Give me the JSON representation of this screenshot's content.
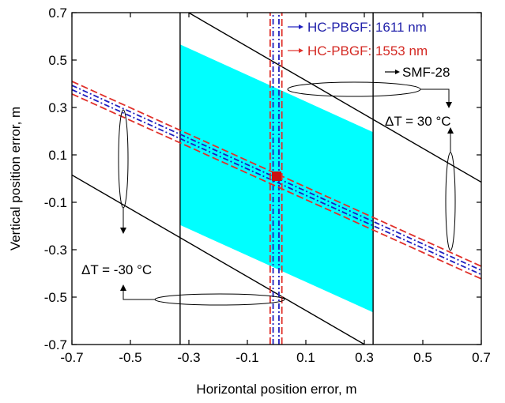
{
  "chart_data": {
    "type": "line",
    "xlabel": "Horizontal position error, m",
    "ylabel": "Vertical position error, m",
    "xlim": [
      -0.7,
      0.7
    ],
    "ylim": [
      -0.7,
      0.7
    ],
    "xticks": [
      "-0.7",
      "-0.5",
      "-0.3",
      "-0.1",
      "0.1",
      "0.3",
      "0.5",
      "0.7"
    ],
    "yticks": [
      "0.7",
      "0.5",
      "0.3",
      "0.1",
      "-0.1",
      "-0.3",
      "-0.5",
      "-0.7"
    ],
    "xtick_values": [
      -0.7,
      -0.5,
      -0.3,
      -0.1,
      0.1,
      0.3,
      0.5,
      0.7
    ],
    "ytick_values": [
      0.7,
      0.5,
      0.3,
      0.1,
      -0.1,
      -0.3,
      -0.5,
      -0.7
    ],
    "series": [
      {
        "name": "SMF-28",
        "color": "#000000",
        "style": "solid",
        "lines": [
          {
            "x": [
              -0.33,
              -0.33
            ],
            "y": [
              -0.7,
              0.7
            ]
          },
          {
            "x": [
              0.33,
              0.33
            ],
            "y": [
              -0.7,
              0.7
            ]
          },
          {
            "x": [
              -0.7,
              0.7
            ],
            "y": [
              0.985,
              -0.015
            ]
          },
          {
            "x": [
              -0.7,
              0.7
            ],
            "y": [
              0.015,
              -0.985
            ]
          }
        ]
      },
      {
        "name": "HC-PBGF: 1611 nm",
        "color": "#1f1fbf",
        "style": "dash-dot",
        "lines": [
          {
            "x": [
              -0.012,
              -0.012
            ],
            "y": [
              -0.7,
              0.7
            ]
          },
          {
            "x": [
              0.008,
              0.008
            ],
            "y": [
              -0.7,
              0.7
            ]
          },
          {
            "x": [
              -0.7,
              0.7
            ],
            "y": [
              0.393,
              -0.387
            ]
          },
          {
            "x": [
              -0.7,
              0.7
            ],
            "y": [
              0.375,
              -0.405
            ]
          }
        ]
      },
      {
        "name": "HC-PBGF: 1553 nm",
        "color": "#e0302a",
        "style": "dashed",
        "lines": [
          {
            "x": [
              -0.022,
              -0.022
            ],
            "y": [
              -0.7,
              0.7
            ]
          },
          {
            "x": [
              0.018,
              0.018
            ],
            "y": [
              -0.7,
              0.7
            ]
          },
          {
            "x": [
              -0.7,
              0.7
            ],
            "y": [
              0.41,
              -0.37
            ]
          },
          {
            "x": [
              -0.7,
              0.7
            ],
            "y": [
              0.357,
              -0.423
            ]
          }
        ]
      }
    ],
    "region": {
      "color": "#00ffff",
      "corners": [
        [
          -0.33,
          0.566
        ],
        [
          0.33,
          0.196
        ],
        [
          0.33,
          -0.564
        ],
        [
          -0.33,
          -0.196
        ]
      ]
    },
    "center_marker": {
      "x": 0.0,
      "y": 0.01,
      "color": "#cc1111"
    },
    "annotations": {
      "dt_pos": "ΔT = 30 °C",
      "dt_neg": "ΔT = -30 °C"
    }
  }
}
